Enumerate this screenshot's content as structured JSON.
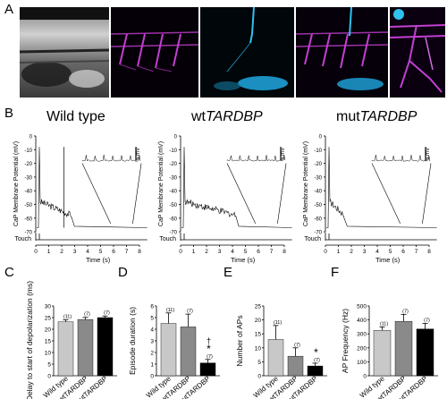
{
  "panels": {
    "A": "A",
    "B": "B",
    "C": "C",
    "D": "D",
    "E": "E",
    "F": "F"
  },
  "colors": {
    "magenta": "#c23fd0",
    "cyan": "#2fc2ef",
    "gray_light": "#c8c8c8",
    "gray_mid": "#8a8a8a",
    "black": "#000000"
  },
  "panel_b": {
    "titles": {
      "wt": "Wild type",
      "tg_prefix": "wt",
      "mut_prefix": "mut",
      "gene": "TARDBP"
    },
    "ylabel": "CaP Membrane Potential (mV)",
    "yticks": [
      "0",
      "-10",
      "-20",
      "-30",
      "-40",
      "-50",
      "-60",
      "-70"
    ],
    "xticks": [
      "0",
      "1",
      "2",
      "3",
      "4",
      "5",
      "6",
      "7",
      "8"
    ],
    "xlabel": "Time (s)",
    "touch_label": "Touch",
    "scalebar": "5 mV"
  },
  "chart_data": [
    {
      "type": "bar",
      "panel": "C",
      "categories": [
        "Wild type",
        "wtTARDBP",
        "mutTARDBP"
      ],
      "values": [
        23.2,
        24.2,
        25
      ],
      "errors": [
        0.8,
        0.9,
        0.7
      ],
      "n_labels": [
        "(11)",
        "(7)",
        "(7)"
      ],
      "ylabel": "Delay to start of depolarization (ms)",
      "ylim": [
        0,
        30
      ],
      "yticks": [
        "0",
        "5",
        "10",
        "15",
        "20",
        "25",
        "30"
      ]
    },
    {
      "type": "bar",
      "panel": "D",
      "categories": [
        "Wild type",
        "wtTARDBP",
        "mutTARDBP"
      ],
      "values": [
        4.5,
        4.2,
        1.1
      ],
      "errors": [
        0.9,
        1.1,
        0.3
      ],
      "n_labels": [
        "(11)",
        "(7)",
        "(7)"
      ],
      "marks": [
        "",
        "",
        "*"
      ],
      "dagger": "†",
      "ylabel": "Episode duration (s)",
      "ylim": [
        0,
        6
      ],
      "yticks": [
        "0",
        "1",
        "2",
        "3",
        "4",
        "5",
        "6"
      ]
    },
    {
      "type": "bar",
      "panel": "E",
      "categories": [
        "Wild type",
        "wtTARDBP",
        "mutTARDBP"
      ],
      "values": [
        13,
        7,
        3.5
      ],
      "errors": [
        5,
        3,
        1
      ],
      "n_labels": [
        "(11)",
        "(7)",
        "(7)"
      ],
      "marks": [
        "",
        "",
        "*"
      ],
      "ylabel": "Number of APs",
      "ylim": [
        0,
        25
      ],
      "yticks": [
        "0",
        "5",
        "10",
        "15",
        "20",
        "25"
      ]
    },
    {
      "type": "bar",
      "panel": "F",
      "categories": [
        "Wild type",
        "wtTARDBP",
        "mutTARDBP"
      ],
      "values": [
        325,
        390,
        335
      ],
      "errors": [
        25,
        50,
        40
      ],
      "n_labels": [
        "(11)",
        "(7)",
        "(7)"
      ],
      "ylabel": "AP Frequency (Hz)",
      "ylim": [
        0,
        500
      ],
      "yticks": [
        "0",
        "100",
        "200",
        "300",
        "400",
        "500"
      ]
    }
  ]
}
